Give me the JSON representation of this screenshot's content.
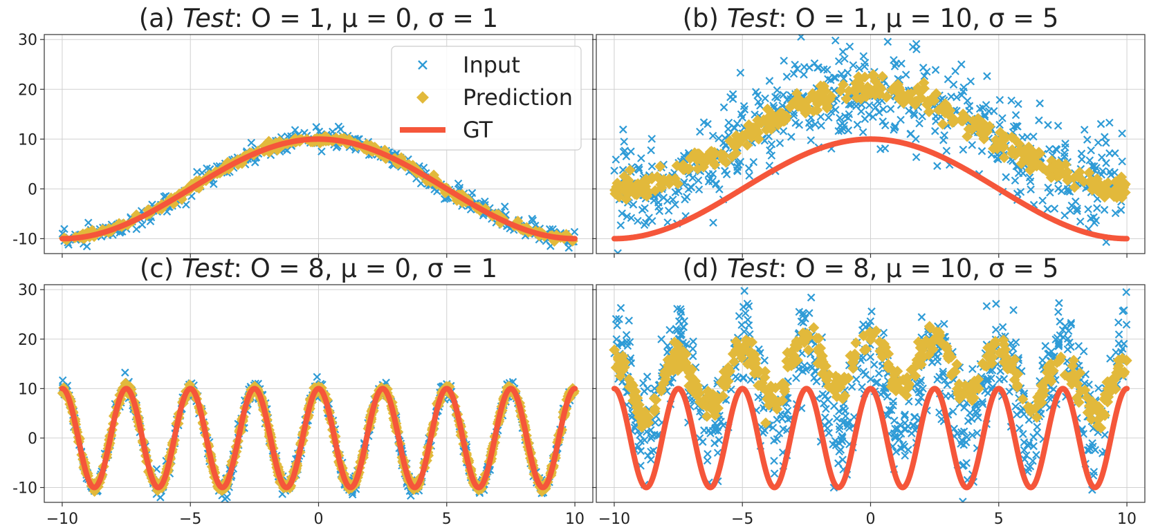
{
  "chart_data": [
    {
      "type": "scatter",
      "panel_id": "a",
      "title_prefix": "(a) ",
      "title_italic": "Test",
      "title_rest": ": O = 1, μ = 0, σ = 1",
      "title_color": "#222222",
      "O": 1,
      "mu": 0,
      "sigma": 1,
      "xlim": [
        -10.7,
        10.7
      ],
      "ylim": [
        -13,
        31
      ],
      "xticks": [
        -10,
        -5,
        0,
        5,
        10
      ],
      "yticks": [
        -10,
        0,
        10,
        20,
        30
      ],
      "x_tick_labels_visible": false,
      "grid": true,
      "legend": "top-right",
      "series": [
        {
          "name": "Input",
          "kind": "scatter",
          "marker": "x",
          "color": "#2e9bd6",
          "x_range": [
            -10,
            10
          ],
          "points": 400,
          "mean": "GT",
          "std": 1,
          "sample_points": [
            [
              -10,
              -9.6
            ],
            [
              -5,
              -0.4
            ],
            [
              0,
              10.6
            ],
            [
              5,
              0.8
            ],
            [
              10,
              -10.4
            ]
          ]
        },
        {
          "name": "Prediction",
          "kind": "scatter",
          "marker": "diamond",
          "color": "#e2b93b",
          "x_range": [
            -10,
            10
          ],
          "points": 300,
          "mean": "GT",
          "std": 0.4,
          "sample_points": [
            [
              -10,
              -10.3
            ],
            [
              -5,
              0.1
            ],
            [
              0,
              9.8
            ],
            [
              5,
              0.2
            ],
            [
              10,
              -10.2
            ]
          ]
        },
        {
          "name": "GT",
          "kind": "line",
          "color": "#f5563a",
          "formula": "10*cos(pi*O*x/10)",
          "sample_points": [
            [
              -10,
              -10
            ],
            [
              -5,
              0
            ],
            [
              0,
              10
            ],
            [
              5,
              0
            ],
            [
              10,
              -10
            ]
          ]
        }
      ]
    },
    {
      "type": "scatter",
      "panel_id": "b",
      "title_prefix": "(b) ",
      "title_italic": "Test",
      "title_rest": ": O = 1, μ = 10, σ = 5",
      "title_color": "#222222",
      "O": 1,
      "mu": 10,
      "sigma": 5,
      "xlim": [
        -10.7,
        10.7
      ],
      "ylim": [
        -13,
        31
      ],
      "xticks": [
        -10,
        -5,
        0,
        5,
        10
      ],
      "yticks": [
        -10,
        0,
        10,
        20,
        30
      ],
      "x_tick_labels_visible": false,
      "y_tick_labels_visible": false,
      "grid": true,
      "series": [
        {
          "name": "Input",
          "kind": "scatter",
          "marker": "x",
          "color": "#2e9bd6",
          "x_range": [
            -10,
            10
          ],
          "points": 600,
          "mean": "GT+10",
          "std": 5,
          "sample_points": [
            [
              -10,
              0
            ],
            [
              -5,
              10
            ],
            [
              0,
              20
            ],
            [
              5,
              10
            ],
            [
              10,
              0
            ]
          ]
        },
        {
          "name": "Prediction",
          "kind": "scatter",
          "marker": "diamond",
          "color": "#e2b93b",
          "x_range": [
            -10,
            10
          ],
          "points": 400,
          "mean": "GT+10",
          "std": 1.2,
          "sample_points": [
            [
              -10,
              0.5
            ],
            [
              -5,
              10
            ],
            [
              0,
              19
            ],
            [
              5,
              11
            ],
            [
              10,
              1
            ]
          ]
        },
        {
          "name": "GT",
          "kind": "line",
          "color": "#f5563a",
          "formula": "10*cos(pi*O*x/10)",
          "sample_points": [
            [
              -10,
              -10
            ],
            [
              -5,
              0
            ],
            [
              0,
              10
            ],
            [
              5,
              0
            ],
            [
              10,
              -10
            ]
          ]
        }
      ]
    },
    {
      "type": "scatter",
      "panel_id": "c",
      "title_prefix": "(c) ",
      "title_italic": "Test",
      "title_rest": ": O = 8, μ = 0, σ = 1",
      "title_color": "#ff1a1a",
      "O": 8,
      "mu": 0,
      "sigma": 1,
      "xlim": [
        -10.7,
        10.7
      ],
      "ylim": [
        -13,
        31
      ],
      "xticks": [
        -10,
        -5,
        0,
        5,
        10
      ],
      "yticks": [
        -10,
        0,
        10,
        20,
        30
      ],
      "x_tick_labels_visible": true,
      "grid": true,
      "series": [
        {
          "name": "Input",
          "kind": "scatter",
          "marker": "x",
          "color": "#2e9bd6",
          "x_range": [
            -10,
            10
          ],
          "points": 700,
          "mean": "GT",
          "std": 1,
          "sample_points": [
            [
              -10,
              10.5
            ],
            [
              -8.75,
              -10.8
            ],
            [
              -7.5,
              10.6
            ],
            [
              0,
              11
            ],
            [
              10,
              10.8
            ]
          ]
        },
        {
          "name": "Prediction",
          "kind": "scatter",
          "marker": "diamond",
          "color": "#e2b93b",
          "x_range": [
            -10,
            10
          ],
          "points": 700,
          "mean": "GT",
          "std": 0.4,
          "sample_points": [
            [
              -10,
              9.8
            ],
            [
              -8.75,
              -10
            ],
            [
              -7.5,
              10
            ],
            [
              0,
              10
            ],
            [
              10,
              10
            ]
          ]
        },
        {
          "name": "GT",
          "kind": "line",
          "color": "#f5563a",
          "formula": "10*cos(pi*O*x/10)",
          "sample_points": [
            [
              -10,
              10
            ],
            [
              -8.75,
              -10
            ],
            [
              -7.5,
              10
            ],
            [
              0,
              10
            ],
            [
              10,
              10
            ]
          ]
        }
      ]
    },
    {
      "type": "scatter",
      "panel_id": "d",
      "title_prefix": "(d) ",
      "title_italic": "Test",
      "title_rest": ": O = 8, μ = 10, σ = 5",
      "title_color": "#222222",
      "O": 8,
      "mu": 10,
      "sigma": 5,
      "xlim": [
        -10.7,
        10.7
      ],
      "ylim": [
        -13,
        31
      ],
      "xticks": [
        -10,
        -5,
        0,
        5,
        10
      ],
      "yticks": [
        -10,
        0,
        10,
        20,
        30
      ],
      "x_tick_labels_visible": true,
      "y_tick_labels_visible": false,
      "grid": true,
      "series": [
        {
          "name": "Input",
          "kind": "scatter",
          "marker": "x",
          "color": "#2e9bd6",
          "x_range": [
            -10,
            10
          ],
          "points": 800,
          "mean": "GT+10",
          "std": 5,
          "sample_points": [
            [
              -10,
              20
            ],
            [
              -8.75,
              0
            ],
            [
              -7.5,
              20
            ],
            [
              0,
              20
            ],
            [
              10,
              20
            ]
          ]
        },
        {
          "name": "Prediction",
          "kind": "scatter",
          "marker": "diamond",
          "color": "#e2b93b",
          "x_range": [
            -10,
            10
          ],
          "points": 500,
          "mean": "smoothed GT+10",
          "std": 1.5,
          "sample_points": [
            [
              -10,
              17
            ],
            [
              -8.75,
              4
            ],
            [
              -7.5,
              17
            ],
            [
              0,
              18
            ],
            [
              10,
              20
            ]
          ]
        },
        {
          "name": "GT",
          "kind": "line",
          "color": "#f5563a",
          "formula": "10*cos(pi*O*x/10)",
          "sample_points": [
            [
              -10,
              10
            ],
            [
              -8.75,
              -10
            ],
            [
              -7.5,
              10
            ],
            [
              0,
              10
            ],
            [
              10,
              10
            ]
          ]
        }
      ]
    }
  ],
  "legend": {
    "entries": [
      {
        "label": "Input",
        "marker": "x",
        "color": "#2e9bd6"
      },
      {
        "label": "Prediction",
        "marker": "diamond",
        "color": "#e2b93b"
      },
      {
        "label": "GT",
        "marker": "line",
        "color": "#f5563a"
      }
    ]
  }
}
